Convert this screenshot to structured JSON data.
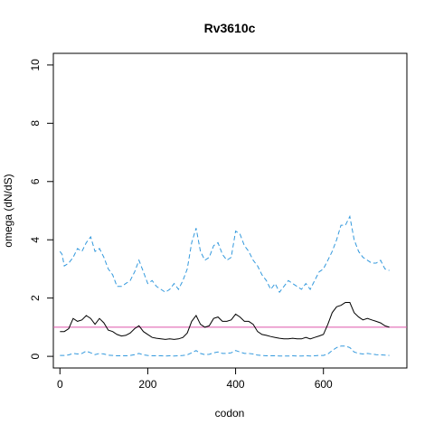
{
  "chart_data": {
    "type": "line",
    "title": "Rv3610c",
    "xlabel": "codon",
    "ylabel": "omega (dN/dS)",
    "xlim": [
      -15,
      790
    ],
    "ylim": [
      -0.4,
      10.4
    ],
    "xticks": [
      0,
      200,
      400,
      600
    ],
    "yticks": [
      0,
      2,
      4,
      6,
      8,
      10
    ],
    "reference_line": {
      "y": 1,
      "color": "#dd55aa"
    },
    "series": [
      {
        "role": "upper",
        "color": "#3399dd",
        "dash": true,
        "x": [
          0,
          5,
          10,
          20,
          30,
          40,
          50,
          60,
          70,
          80,
          90,
          100,
          110,
          120,
          130,
          140,
          150,
          160,
          170,
          180,
          190,
          200,
          210,
          220,
          230,
          240,
          250,
          260,
          270,
          280,
          290,
          300,
          310,
          320,
          330,
          340,
          350,
          360,
          370,
          380,
          390,
          400,
          410,
          420,
          430,
          440,
          450,
          460,
          470,
          480,
          490,
          500,
          510,
          520,
          530,
          540,
          550,
          560,
          570,
          580,
          590,
          600,
          610,
          620,
          630,
          640,
          650,
          660,
          670,
          680,
          690,
          700,
          710,
          720,
          730,
          740,
          750
        ],
        "y": [
          3.6,
          3.5,
          3.1,
          3.2,
          3.4,
          3.7,
          3.6,
          3.9,
          4.1,
          3.6,
          3.7,
          3.4,
          3.0,
          2.8,
          2.4,
          2.4,
          2.5,
          2.6,
          2.9,
          3.3,
          2.9,
          2.5,
          2.6,
          2.4,
          2.3,
          2.2,
          2.3,
          2.5,
          2.3,
          2.6,
          3.0,
          3.9,
          4.4,
          3.6,
          3.3,
          3.4,
          3.8,
          3.9,
          3.5,
          3.3,
          3.4,
          4.3,
          4.2,
          3.8,
          3.6,
          3.3,
          3.1,
          2.8,
          2.6,
          2.3,
          2.5,
          2.2,
          2.4,
          2.6,
          2.5,
          2.4,
          2.3,
          2.5,
          2.3,
          2.6,
          2.9,
          3.0,
          3.3,
          3.6,
          4.0,
          4.5,
          4.5,
          4.8,
          4.0,
          3.6,
          3.4,
          3.3,
          3.2,
          3.2,
          3.3,
          3.0,
          2.95
        ]
      },
      {
        "role": "estimate",
        "color": "#000000",
        "dash": false,
        "x": [
          0,
          5,
          10,
          20,
          30,
          40,
          50,
          60,
          70,
          80,
          90,
          100,
          110,
          120,
          130,
          140,
          150,
          160,
          170,
          180,
          190,
          200,
          210,
          220,
          230,
          240,
          250,
          260,
          270,
          280,
          290,
          300,
          310,
          320,
          330,
          340,
          350,
          360,
          370,
          380,
          390,
          400,
          410,
          420,
          430,
          440,
          450,
          460,
          470,
          480,
          490,
          500,
          510,
          520,
          530,
          540,
          550,
          560,
          570,
          580,
          590,
          600,
          610,
          620,
          630,
          640,
          650,
          660,
          670,
          680,
          690,
          700,
          710,
          720,
          730,
          740,
          750
        ],
        "y": [
          0.85,
          0.85,
          0.85,
          0.95,
          1.3,
          1.2,
          1.25,
          1.4,
          1.3,
          1.1,
          1.3,
          1.15,
          0.9,
          0.85,
          0.75,
          0.7,
          0.72,
          0.8,
          0.95,
          1.05,
          0.85,
          0.75,
          0.65,
          0.62,
          0.6,
          0.58,
          0.6,
          0.58,
          0.6,
          0.65,
          0.8,
          1.2,
          1.4,
          1.1,
          1.0,
          1.05,
          1.3,
          1.35,
          1.2,
          1.2,
          1.25,
          1.45,
          1.35,
          1.2,
          1.2,
          1.1,
          0.85,
          0.75,
          0.72,
          0.68,
          0.65,
          0.62,
          0.6,
          0.6,
          0.62,
          0.6,
          0.6,
          0.65,
          0.6,
          0.65,
          0.7,
          0.75,
          1.1,
          1.5,
          1.7,
          1.75,
          1.85,
          1.85,
          1.5,
          1.35,
          1.25,
          1.3,
          1.25,
          1.2,
          1.15,
          1.05,
          1.0
        ]
      },
      {
        "role": "lower",
        "color": "#3399dd",
        "dash": true,
        "x": [
          0,
          5,
          10,
          20,
          30,
          40,
          50,
          60,
          70,
          80,
          90,
          100,
          110,
          120,
          130,
          140,
          150,
          160,
          170,
          180,
          190,
          200,
          210,
          220,
          230,
          240,
          250,
          260,
          270,
          280,
          290,
          300,
          310,
          320,
          330,
          340,
          350,
          360,
          370,
          380,
          390,
          400,
          410,
          420,
          430,
          440,
          450,
          460,
          470,
          480,
          490,
          500,
          510,
          520,
          530,
          540,
          550,
          560,
          570,
          580,
          590,
          600,
          610,
          620,
          630,
          640,
          650,
          660,
          670,
          680,
          690,
          700,
          710,
          720,
          730,
          740,
          750
        ],
        "y": [
          0.03,
          0.03,
          0.03,
          0.05,
          0.1,
          0.08,
          0.1,
          0.18,
          0.12,
          0.06,
          0.1,
          0.08,
          0.04,
          0.03,
          0.02,
          0.02,
          0.02,
          0.03,
          0.06,
          0.1,
          0.05,
          0.03,
          0.02,
          0.02,
          0.02,
          0.01,
          0.02,
          0.01,
          0.02,
          0.03,
          0.05,
          0.12,
          0.2,
          0.1,
          0.06,
          0.07,
          0.12,
          0.15,
          0.1,
          0.1,
          0.12,
          0.2,
          0.15,
          0.1,
          0.1,
          0.08,
          0.04,
          0.03,
          0.02,
          0.02,
          0.02,
          0.01,
          0.01,
          0.01,
          0.02,
          0.01,
          0.01,
          0.02,
          0.01,
          0.02,
          0.03,
          0.03,
          0.08,
          0.2,
          0.3,
          0.35,
          0.35,
          0.3,
          0.15,
          0.1,
          0.08,
          0.1,
          0.08,
          0.06,
          0.05,
          0.04,
          0.03
        ]
      }
    ]
  }
}
